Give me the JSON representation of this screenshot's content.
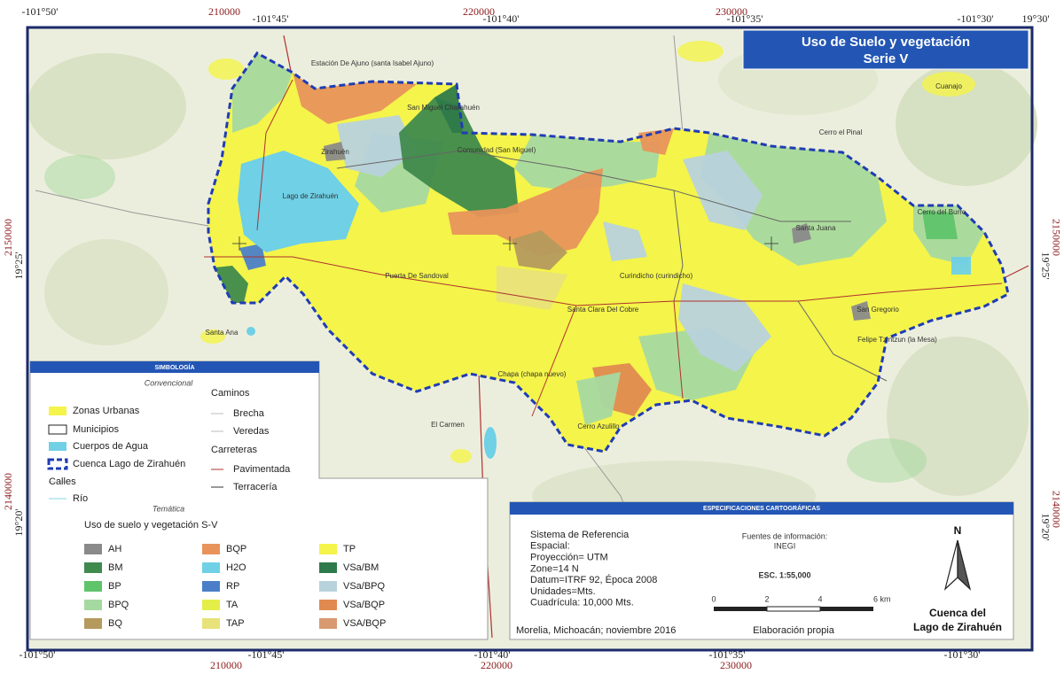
{
  "header": {
    "title": "Uso de Suelo y vegetación",
    "subtitle": "Serie V"
  },
  "frame": {
    "top": [
      "-101°50'",
      "210000",
      "-101°45'",
      "220000",
      "-101°40'",
      "230000",
      "-101°35'",
      "-101°30'",
      "19°30'"
    ],
    "bottom": [
      "-101°50'",
      "210000",
      "-101°45'",
      "-101°40'",
      "220000",
      "-101°35'",
      "230000",
      "-101°30'"
    ],
    "left": [
      "2150000",
      "19°25'",
      "2140000",
      "19°20'"
    ],
    "right": [
      "2150000",
      "19°25'",
      "2140000",
      "19°20'"
    ]
  },
  "places": [
    "Estación De Ajuno (santa Isabel Ajuno)",
    "San Miguel Charahuén",
    "Zirahuén",
    "Lago de Zirahuén",
    "Comunidad (San Miguel)",
    "Cerro el Pinal",
    "Cerro del Burro",
    "Santa Juana",
    "Puerta De Sandoval",
    "Curindicho (curindicho)",
    "Santa Clara Del Cobre",
    "San Gregorio",
    "Felipe Tzintzun (la Mesa)",
    "Santa Ana",
    "Chapa (chapa nuevo)",
    "El Carmen",
    "Cerro Azulillo",
    "Cuanajo"
  ],
  "legend": {
    "title": "SIMBOLOGÍA",
    "conventional_heading": "Convencional",
    "conventional": [
      "Zonas Urbanas",
      "Municipios",
      "Cuerpos de Agua",
      "Cuenca Lago de Zirahuén",
      "Calles",
      "Río"
    ],
    "roads_heading": "Caminos",
    "roads": [
      "Brecha",
      "Veredas"
    ],
    "highways_heading": "Carreteras",
    "highways": [
      "Pavimentada",
      "Terracería"
    ],
    "thematic_heading": "Temática",
    "thematic_title": "Uso de suelo y vegetación S-V",
    "classes": [
      {
        "label": "AH",
        "color": "#8a8a8a"
      },
      {
        "label": "BM",
        "color": "#3f8a4c"
      },
      {
        "label": "BP",
        "color": "#5fc46a"
      },
      {
        "label": "BPQ",
        "color": "#a6d9a0"
      },
      {
        "label": "BQ",
        "color": "#b59a5e"
      },
      {
        "label": "BQP",
        "color": "#e8935a"
      },
      {
        "label": "H2O",
        "color": "#6fd0e6"
      },
      {
        "label": "RP",
        "color": "#4a7fc8"
      },
      {
        "label": "TA",
        "color": "#e4ee48"
      },
      {
        "label": "TAP",
        "color": "#e8e27a"
      },
      {
        "label": "TP",
        "color": "#f4f44a"
      },
      {
        "label": "VSa/BM",
        "color": "#2f7a4a"
      },
      {
        "label": "VSa/BPQ",
        "color": "#b8d2dc"
      },
      {
        "label": "VSa/BQP",
        "color": "#e08a50"
      },
      {
        "label": "VSA/BQP",
        "color": "#d99a70"
      }
    ]
  },
  "specs": {
    "title": "ESPECIFICACIONES CARTOGRÁFICAS",
    "reference": [
      "Sistema de Referencia",
      "Espacial:",
      "Proyección= UTM",
      "Zone=14 N",
      "Datum=ITRF 92, Época 2008",
      "Unidades=Mts.",
      "Cuadrícula: 10,000 Mts."
    ],
    "place_date": "Morelia, Michoacán; noviembre 2016",
    "sources_heading": "Fuentes de información:",
    "sources": "INEGI",
    "scale": "ESC. 1:55,000",
    "scale_bar": [
      "0",
      "2",
      "4",
      "6 km"
    ],
    "credit": "Elaboración propia"
  },
  "north": {
    "letter": "N",
    "name": [
      "Cuenca del",
      "Lago de Zirahuén"
    ]
  }
}
